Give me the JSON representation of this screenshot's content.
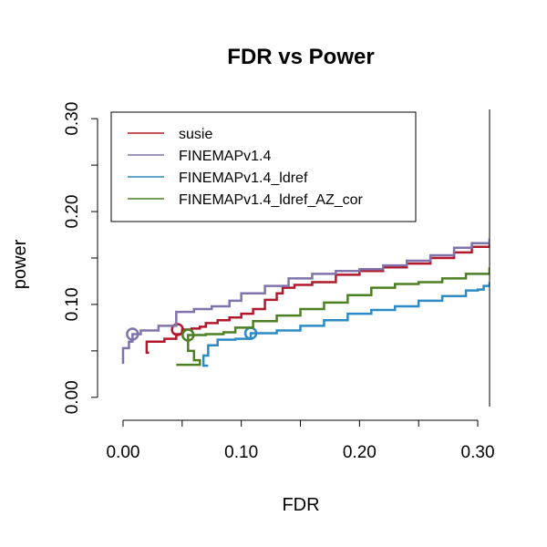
{
  "chart_data": {
    "type": "line",
    "title": "FDR vs Power",
    "xlabel": "FDR",
    "ylabel": "power",
    "xlim": [
      -0.01,
      0.31
    ],
    "ylim": [
      -0.01,
      0.31
    ],
    "x_ticks": [
      0.0,
      0.1,
      0.2,
      0.3
    ],
    "x_tick_labels": [
      "0.00",
      "0.10",
      "0.20",
      "0.30"
    ],
    "y_ticks": [
      0.0,
      0.1,
      0.2,
      0.3
    ],
    "y_tick_labels": [
      "0.00",
      "0.10",
      "0.20",
      "0.30"
    ],
    "legend_position": "top-left",
    "series": [
      {
        "name": "susie",
        "color": "#B2182B",
        "marker": [
          0.046,
          0.073
        ],
        "points": [
          [
            0.022,
            0.048
          ],
          [
            0.02,
            0.06
          ],
          [
            0.035,
            0.063
          ],
          [
            0.045,
            0.068
          ],
          [
            0.05,
            0.073
          ],
          [
            0.058,
            0.074
          ],
          [
            0.065,
            0.076
          ],
          [
            0.07,
            0.08
          ],
          [
            0.08,
            0.083
          ],
          [
            0.09,
            0.086
          ],
          [
            0.1,
            0.09
          ],
          [
            0.11,
            0.095
          ],
          [
            0.12,
            0.105
          ],
          [
            0.13,
            0.112
          ],
          [
            0.135,
            0.118
          ],
          [
            0.145,
            0.121
          ],
          [
            0.16,
            0.124
          ],
          [
            0.18,
            0.132
          ],
          [
            0.2,
            0.136
          ],
          [
            0.22,
            0.14
          ],
          [
            0.24,
            0.144
          ],
          [
            0.26,
            0.15
          ],
          [
            0.28,
            0.156
          ],
          [
            0.295,
            0.162
          ],
          [
            0.31,
            0.166
          ]
        ]
      },
      {
        "name": "FINEMAPv1.4",
        "color": "#8073AC",
        "marker": [
          0.008,
          0.068
        ],
        "points": [
          [
            0.0,
            0.036
          ],
          [
            0.0,
            0.053
          ],
          [
            0.005,
            0.06
          ],
          [
            0.008,
            0.068
          ],
          [
            0.015,
            0.072
          ],
          [
            0.03,
            0.077
          ],
          [
            0.045,
            0.083
          ],
          [
            0.045,
            0.092
          ],
          [
            0.06,
            0.095
          ],
          [
            0.075,
            0.098
          ],
          [
            0.09,
            0.104
          ],
          [
            0.1,
            0.112
          ],
          [
            0.12,
            0.12
          ],
          [
            0.14,
            0.128
          ],
          [
            0.16,
            0.133
          ],
          [
            0.18,
            0.136
          ],
          [
            0.2,
            0.138
          ],
          [
            0.22,
            0.142
          ],
          [
            0.24,
            0.147
          ],
          [
            0.26,
            0.153
          ],
          [
            0.28,
            0.161
          ],
          [
            0.295,
            0.166
          ],
          [
            0.31,
            0.171
          ]
        ]
      },
      {
        "name": "FINEMAPv1.4_ldref",
        "color": "#2C8BC4",
        "marker": [
          0.108,
          0.069
        ],
        "points": [
          [
            0.072,
            0.034
          ],
          [
            0.068,
            0.045
          ],
          [
            0.072,
            0.056
          ],
          [
            0.08,
            0.062
          ],
          [
            0.095,
            0.063
          ],
          [
            0.108,
            0.069
          ],
          [
            0.13,
            0.072
          ],
          [
            0.15,
            0.077
          ],
          [
            0.17,
            0.083
          ],
          [
            0.19,
            0.09
          ],
          [
            0.21,
            0.094
          ],
          [
            0.23,
            0.098
          ],
          [
            0.25,
            0.104
          ],
          [
            0.27,
            0.109
          ],
          [
            0.29,
            0.115
          ],
          [
            0.3,
            0.116
          ],
          [
            0.305,
            0.12
          ],
          [
            0.31,
            0.124
          ]
        ]
      },
      {
        "name": "FINEMAPv1.4_ldref_AZ_cor",
        "color": "#4D7F23",
        "marker": [
          0.055,
          0.067
        ],
        "points": [
          [
            0.045,
            0.035
          ],
          [
            0.065,
            0.04
          ],
          [
            0.06,
            0.05
          ],
          [
            0.055,
            0.06
          ],
          [
            0.055,
            0.067
          ],
          [
            0.07,
            0.068
          ],
          [
            0.085,
            0.07
          ],
          [
            0.095,
            0.075
          ],
          [
            0.11,
            0.082
          ],
          [
            0.13,
            0.088
          ],
          [
            0.15,
            0.095
          ],
          [
            0.17,
            0.102
          ],
          [
            0.19,
            0.11
          ],
          [
            0.21,
            0.118
          ],
          [
            0.23,
            0.122
          ],
          [
            0.25,
            0.124
          ],
          [
            0.27,
            0.128
          ],
          [
            0.29,
            0.133
          ],
          [
            0.31,
            0.14
          ]
        ]
      }
    ]
  }
}
